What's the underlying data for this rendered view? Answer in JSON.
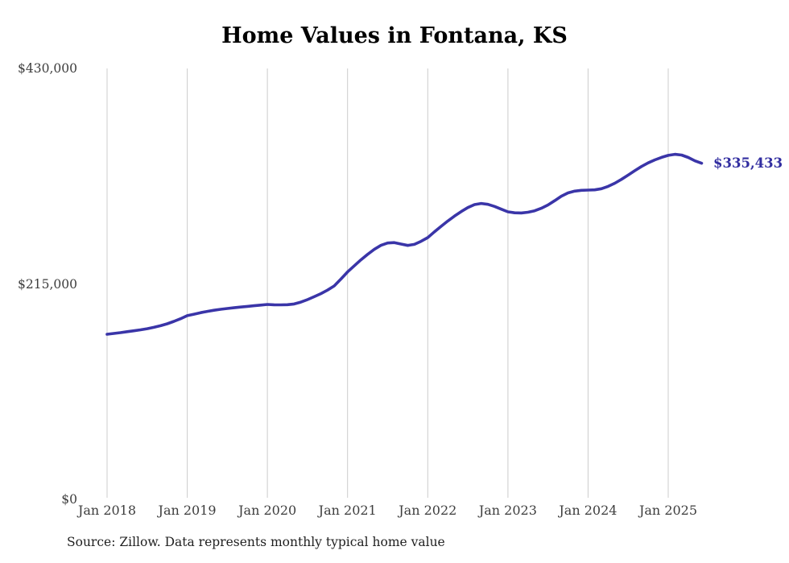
{
  "chart_data": {
    "type": "line",
    "title": "Home Values in Fontana, KS",
    "source": "Source: Zillow. Data represents monthly typical home value",
    "end_label": "$335,433",
    "latest_value": 335433,
    "ylim": [
      0,
      430000
    ],
    "grid": "vertical",
    "legend": "none",
    "y_ticks": [
      {
        "label": "$430,000",
        "value": 430000
      },
      {
        "label": "$215,000",
        "value": 215000
      },
      {
        "label": "$0",
        "value": 0
      }
    ],
    "x_ticks": [
      {
        "label": "Jan 2018",
        "month_index": 0
      },
      {
        "label": "Jan 2019",
        "month_index": 12
      },
      {
        "label": "Jan 2020",
        "month_index": 24
      },
      {
        "label": "Jan 2021",
        "month_index": 36
      },
      {
        "label": "Jan 2022",
        "month_index": 48
      },
      {
        "label": "Jan 2023",
        "month_index": 60
      },
      {
        "label": "Jan 2024",
        "month_index": 72
      },
      {
        "label": "Jan 2025",
        "month_index": 84
      }
    ],
    "series": [
      {
        "name": "Monthly typical home value",
        "start_month": "2018-01",
        "end_month": "2025-06",
        "values": [
          164800,
          165600,
          166400,
          167300,
          168200,
          169200,
          170300,
          171700,
          173300,
          175200,
          177600,
          180300,
          183300,
          184800,
          186300,
          187600,
          188700,
          189700,
          190500,
          191200,
          191900,
          192600,
          193200,
          193900,
          194500,
          194200,
          194100,
          194300,
          195000,
          196800,
          199300,
          202200,
          205300,
          208800,
          213000,
          219800,
          227000,
          233000,
          239000,
          244500,
          249500,
          253500,
          255800,
          256200,
          254800,
          253400,
          254500,
          257500,
          261200,
          267000,
          272500,
          277800,
          282700,
          287200,
          291200,
          294200,
          295300,
          294400,
          292300,
          289600,
          286900,
          286000,
          285800,
          286500,
          288000,
          290500,
          293800,
          298000,
          302500,
          305800,
          307600,
          308400,
          308600,
          308900,
          310000,
          312300,
          315500,
          319300,
          323600,
          328000,
          332200,
          335800,
          338800,
          341300,
          343300,
          344300,
          343600,
          341200,
          337800,
          335433
        ]
      }
    ],
    "colors": {
      "line": "#3a35a8",
      "end_label": "#312da0",
      "gridline": "#cccccc",
      "axis_text": "#3d3d3d",
      "title": "#000000",
      "source_text": "#1f1f1f",
      "background": "#ffffff"
    }
  }
}
